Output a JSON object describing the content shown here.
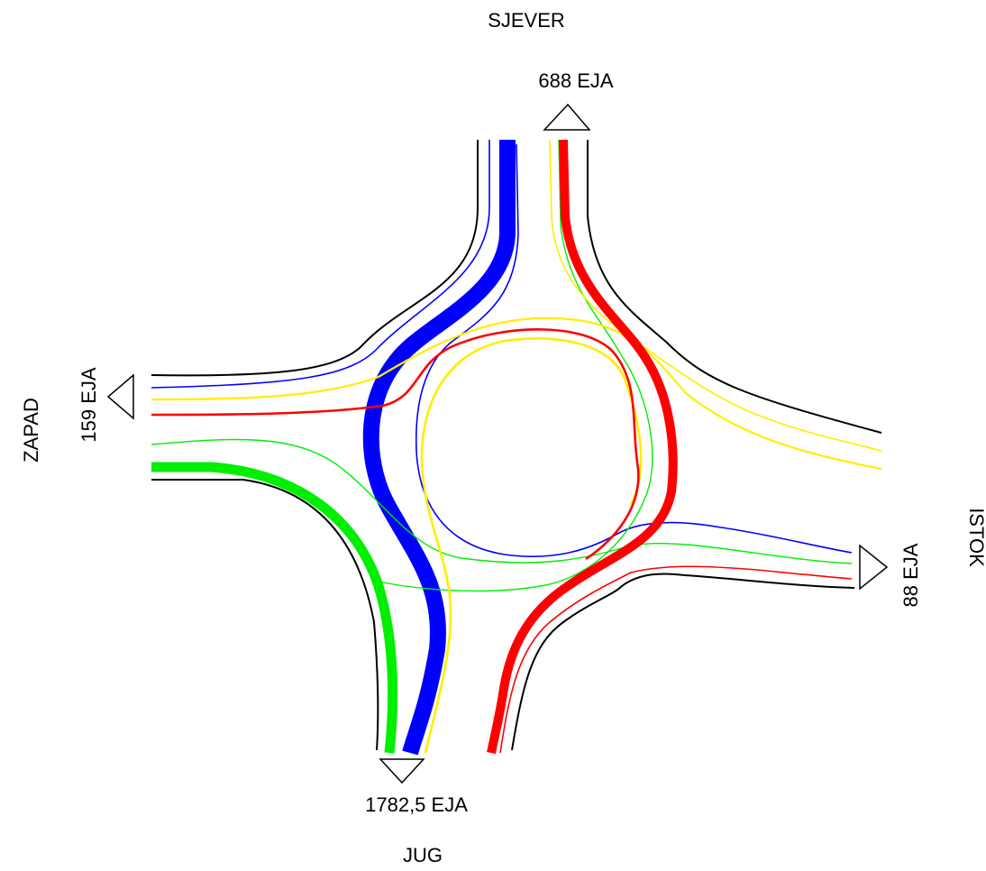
{
  "directions": {
    "north": "SJEVER",
    "south": "JUG",
    "west": "ZAPAD",
    "east": "ISTOK"
  },
  "flows": {
    "north": "688 EJA",
    "south": "1782,5 EJA",
    "west": "159 EJA",
    "east": "88 EJA"
  },
  "colors": {
    "road_edge": "#000000",
    "flow_blue": "#0000ff",
    "flow_red": "#ff0000",
    "flow_green": "#00ee00",
    "flow_yellow": "#ffee00"
  }
}
